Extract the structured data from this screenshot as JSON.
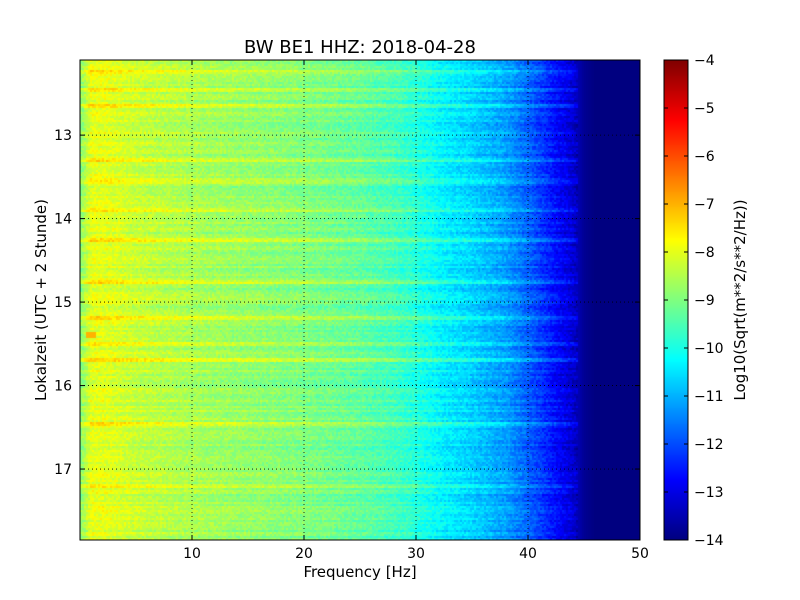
{
  "chart_data": {
    "type": "heatmap",
    "title": "BW BE1 HHZ: 2018-04-28",
    "xlabel": "Frequency [Hz]",
    "ylabel": "Lokalzeit (UTC + 2 Stunde)",
    "colorbar_label": "Log10(Sqrt(m**2/s**2/Hz))",
    "colormap": "jet",
    "xlim": [
      0,
      50
    ],
    "ylim": [
      12.1,
      17.85
    ],
    "y_inverted": true,
    "x_ticks": [
      10,
      20,
      30,
      40,
      50
    ],
    "x_tick_labels": [
      "10",
      "20",
      "30",
      "40",
      "50"
    ],
    "y_ticks": [
      13,
      14,
      15,
      16,
      17
    ],
    "y_tick_labels": [
      "13",
      "14",
      "15",
      "16",
      "17"
    ],
    "grid": true,
    "color_range": [
      -14,
      -4
    ],
    "colorbar_ticks": [
      -4,
      -5,
      -6,
      -7,
      -8,
      -9,
      -10,
      -11,
      -12,
      -13,
      -14
    ],
    "colorbar_tick_labels": [
      "−4",
      "−5",
      "−6",
      "−7",
      "−8",
      "−9",
      "−10",
      "−11",
      "−12",
      "−13",
      "−14"
    ],
    "spectrum_profile": {
      "frequency": [
        0,
        1,
        2,
        5,
        10,
        15,
        20,
        25,
        28,
        30,
        32,
        35,
        38,
        40,
        42,
        44,
        45,
        46,
        50
      ],
      "level": [
        -9.0,
        -8.0,
        -8.0,
        -8.3,
        -8.6,
        -8.8,
        -9.0,
        -9.3,
        -9.6,
        -9.9,
        -10.3,
        -10.7,
        -11.2,
        -11.8,
        -12.5,
        -13.2,
        -13.8,
        -14.0,
        -14.0
      ]
    },
    "bright_bands_hours": [
      12.25,
      12.45,
      12.65,
      13.3,
      13.55,
      13.9,
      14.25,
      14.75,
      15.2,
      15.5,
      15.7,
      16.45,
      17.2
    ],
    "hotspot": {
      "frequency": 1.0,
      "hour": 15.4,
      "level": -7.0
    }
  }
}
